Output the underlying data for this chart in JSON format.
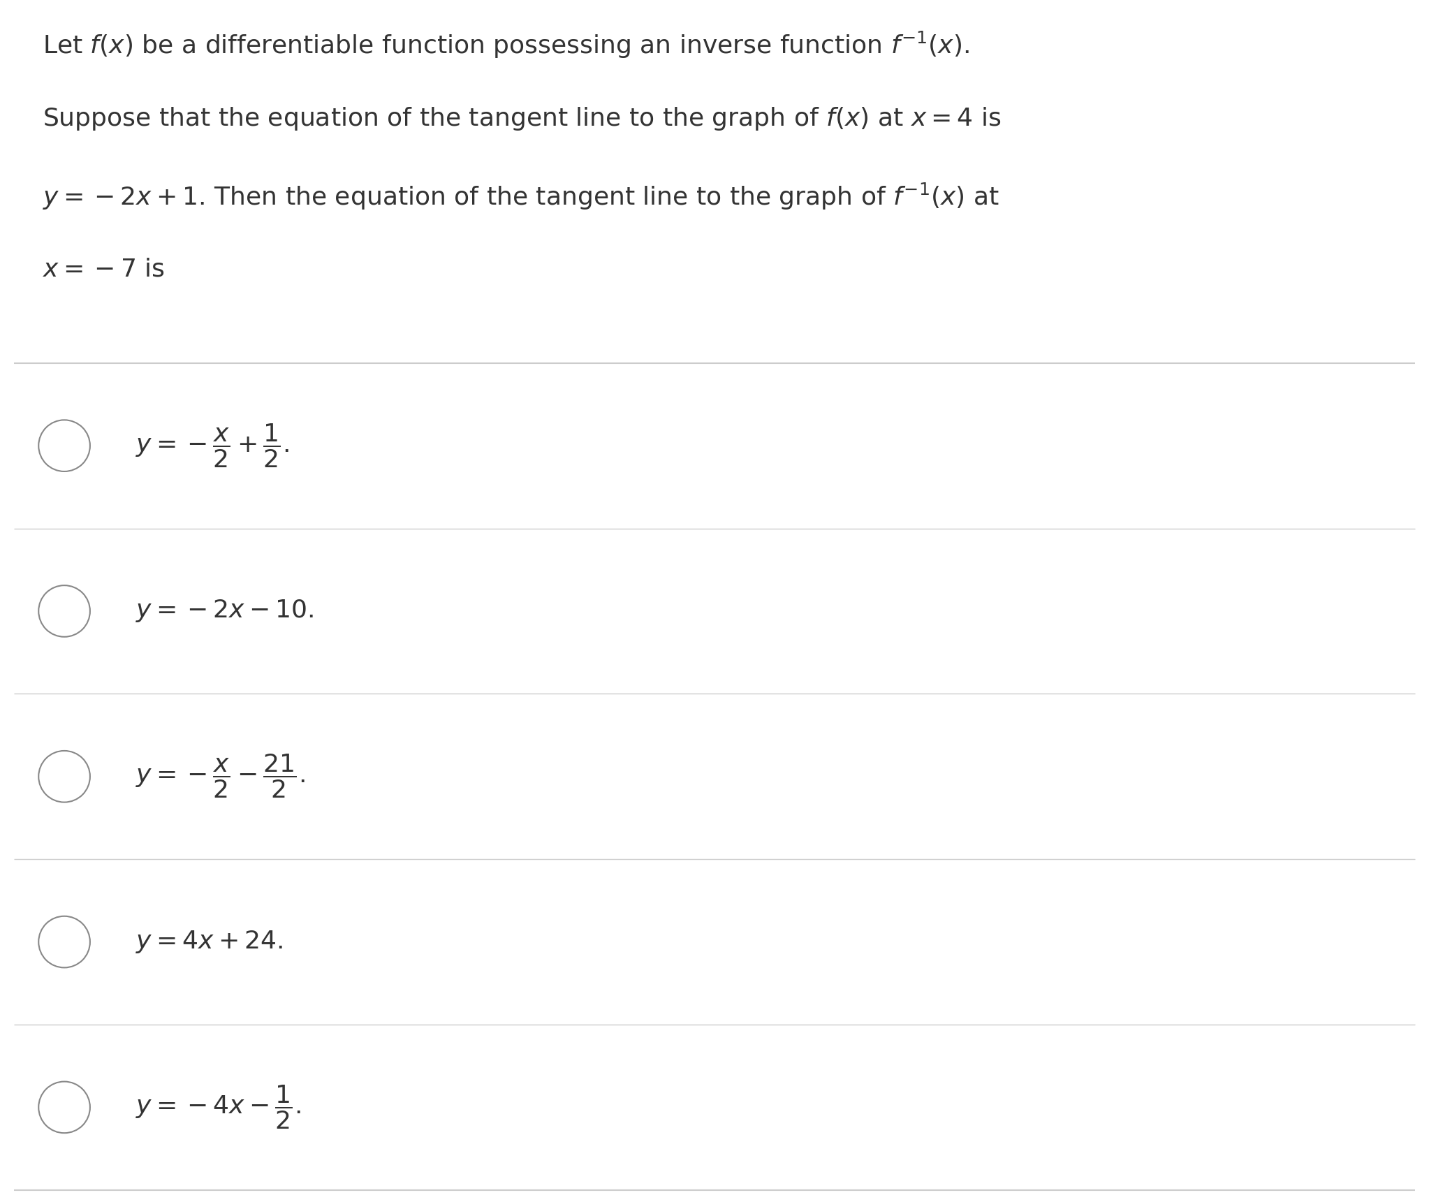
{
  "bg_color": "#ffffff",
  "white_color": "#ffffff",
  "text_color": "#333333",
  "title_lines": [
    "Let $f(x)$ be a differentiable function possessing an inverse function $f^{-1}(x)$.",
    "Suppose that the equation of the tangent line to the graph of $f(x)$ at $x = 4$ is",
    "$y = -2x + 1$. Then the equation of the tangent line to the graph of $f^{-1}(x)$ at",
    "$x = -7$ is"
  ],
  "options": [
    "$y = -\\dfrac{x}{2} + \\dfrac{1}{2}$.",
    "$y = -2x - 10$.",
    "$y = -\\dfrac{x}{2} - \\dfrac{21}{2}$.",
    "$y = 4x + 24$.",
    "$y = -4x - \\dfrac{1}{2}$."
  ],
  "separator_color": "#cccccc",
  "circle_color": "#888888",
  "font_size_title": 26,
  "font_size_options": 26
}
